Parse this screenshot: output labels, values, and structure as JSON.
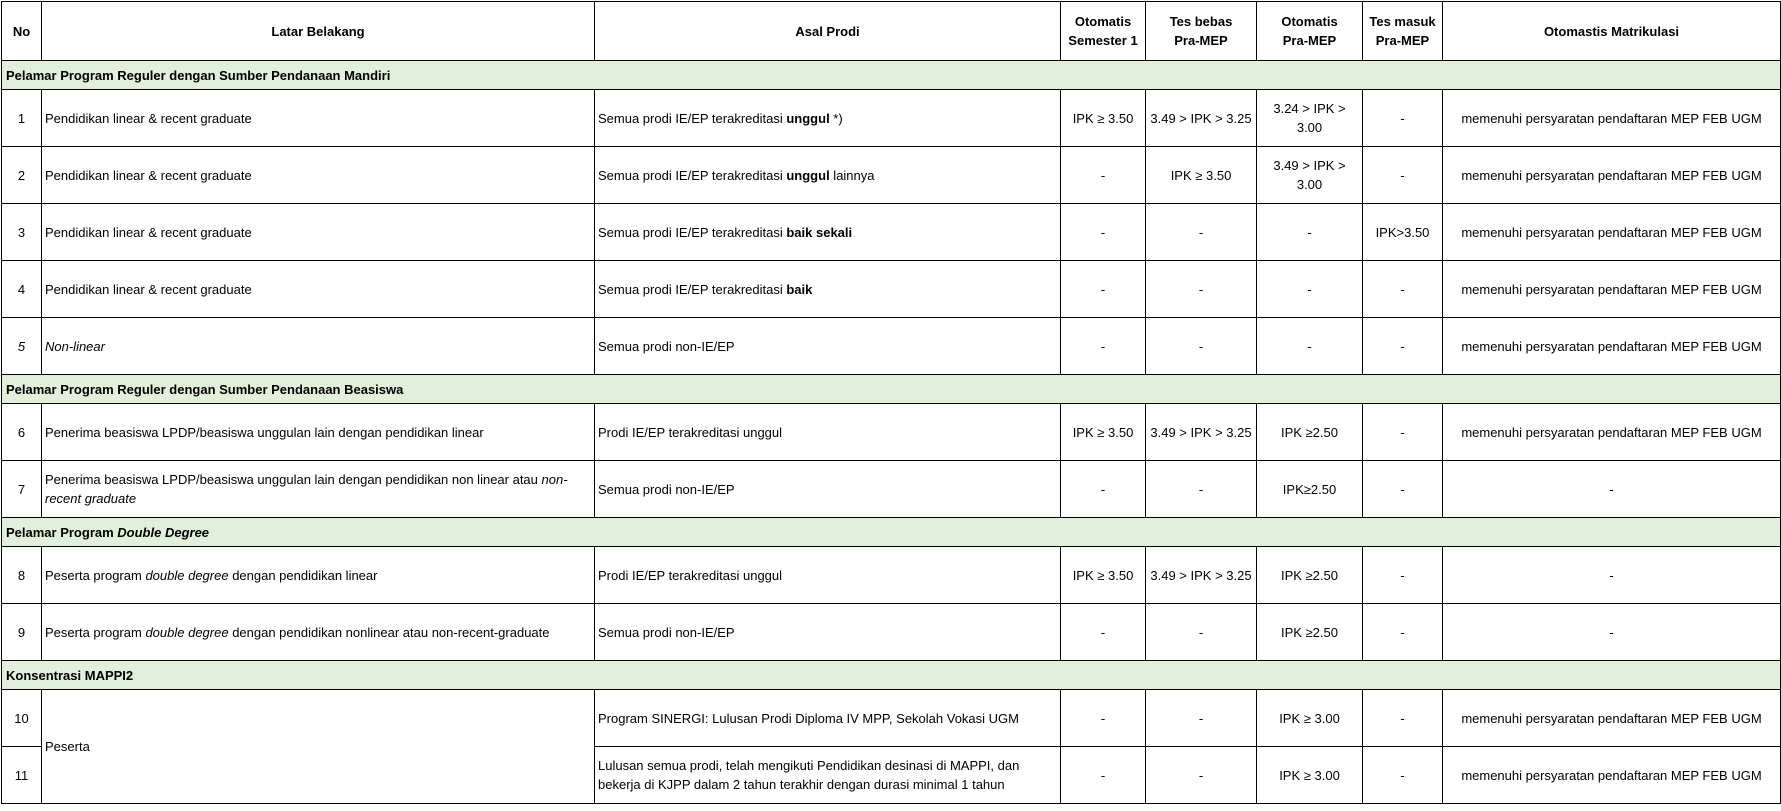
{
  "table": {
    "header": [
      "No",
      "Latar Belakang",
      "Asal Prodi",
      "Otomatis\nSemester 1",
      "Tes bebas\nPra-MEP",
      "Otomatis\nPra-MEP",
      "Tes masuk\nPra-MEP",
      "Otomastis Matrikulasi"
    ],
    "groups": [
      {
        "title": [
          {
            "text": "Pelamar Program Reguler dengan Sumber Pendanaan Mandiri"
          }
        ],
        "rows": [
          [
            "1",
            "Pendidikan linear  & recent graduate",
            [
              {
                "text": "Semua prodi IE/EP terakreditasi "
              },
              {
                "text": "unggul",
                "style": "bold"
              },
              {
                "text": " *)"
              }
            ],
            "IPK ≥ 3.50",
            "3.49 > IPK > 3.25",
            "3.24 > IPK > 3.00",
            "-",
            "memenuhi persyaratan pendaftaran MEP FEB UGM"
          ],
          [
            "2",
            "Pendidikan linear  & recent graduate",
            [
              {
                "text": "Semua prodi IE/EP terakreditasi "
              },
              {
                "text": "unggul",
                "style": "bold"
              },
              {
                "text": " lainnya"
              }
            ],
            "-",
            "IPK ≥ 3.50",
            "3.49 > IPK > 3.00",
            "-",
            "memenuhi persyaratan pendaftaran MEP FEB UGM"
          ],
          [
            "3",
            "Pendidikan linear  & recent graduate",
            [
              {
                "text": "Semua prodi IE/EP terakreditasi "
              },
              {
                "text": "baik sekali",
                "style": "bold"
              }
            ],
            "-",
            "-",
            "-",
            "IPK>3.50",
            "memenuhi persyaratan pendaftaran MEP FEB UGM"
          ],
          [
            "4",
            "Pendidikan linear & recent graduate",
            [
              {
                "text": "Semua prodi IE/EP terakreditasi "
              },
              {
                "text": "baik",
                "style": "bold"
              }
            ],
            "-",
            "-",
            "-",
            "-",
            "memenuhi persyaratan pendaftaran MEP FEB UGM"
          ],
          [
            [
              {
                "text": "5",
                "style": "italic"
              }
            ],
            [
              {
                "text": "Non-linear",
                "style": "italic"
              }
            ],
            "Semua prodi non-IE/EP",
            "-",
            "-",
            "-",
            "-",
            "memenuhi persyaratan pendaftaran MEP FEB UGM"
          ]
        ]
      },
      {
        "title": [
          {
            "text": "Pelamar Program Reguler dengan Sumber Pendanaan Beasiswa"
          }
        ],
        "rows": [
          [
            "6",
            "Penerima beasiswa LPDP/beasiswa unggulan lain dengan pendidikan linear",
            "Prodi IE/EP terakreditasi unggul",
            "IPK ≥ 3.50",
            "3.49 > IPK > 3.25",
            "IPK ≥2.50",
            "-",
            "memenuhi persyaratan pendaftaran MEP FEB UGM"
          ],
          [
            "7",
            [
              {
                "text": "Penerima beasiswa LPDP/beasiswa unggulan lain dengan pendidikan non linear atau "
              },
              {
                "text": "non-recent graduate",
                "style": "italic"
              }
            ],
            "Semua prodi non-IE/EP",
            "-",
            "-",
            "IPK≥2.50",
            "-",
            "-"
          ]
        ]
      },
      {
        "title": [
          {
            "text": "Pelamar Program "
          },
          {
            "text": "Double Degree",
            "style": "italic"
          }
        ],
        "rows": [
          [
            "8",
            [
              {
                "text": "Peserta program "
              },
              {
                "text": "double degree",
                "style": "italic"
              },
              {
                "text": "  dengan pendidikan linear"
              }
            ],
            "Prodi IE/EP terakreditasi unggul",
            "IPK ≥ 3.50",
            "3.49 > IPK > 3.25",
            "IPK ≥2.50",
            "-",
            "-"
          ],
          [
            "9",
            [
              {
                "text": "Peserta program "
              },
              {
                "text": "double degree",
                "style": "italic"
              },
              {
                "text": "  dengan pendidikan nonlinear atau non-recent-graduate"
              }
            ],
            "Semua prodi non-IE/EP",
            "-",
            "-",
            "IPK ≥2.50",
            "-",
            "-"
          ]
        ]
      },
      {
        "title": [
          {
            "text": "Konsentrasi MAPPI2"
          }
        ],
        "rows": [
          [
            "10",
            "Peserta",
            "Program SINERGI: Lulusan Prodi Diploma IV MPP, Sekolah Vokasi UGM",
            "-",
            "-",
            "IPK ≥ 3.00",
            "-",
            "memenuhi persyaratan pendaftaran MEP FEB UGM"
          ],
          [
            "11",
            null,
            "Lulusan semua prodi, telah mengikuti Pendidikan desinasi di MAPPI, dan bekerja di KJPP dalam 2 tahun terakhir dengan durasi minimal 1 tahun",
            "-",
            "-",
            "IPK ≥ 3.00",
            "-",
            "memenuhi persyaratan pendaftaran MEP FEB UGM"
          ]
        ]
      }
    ]
  }
}
